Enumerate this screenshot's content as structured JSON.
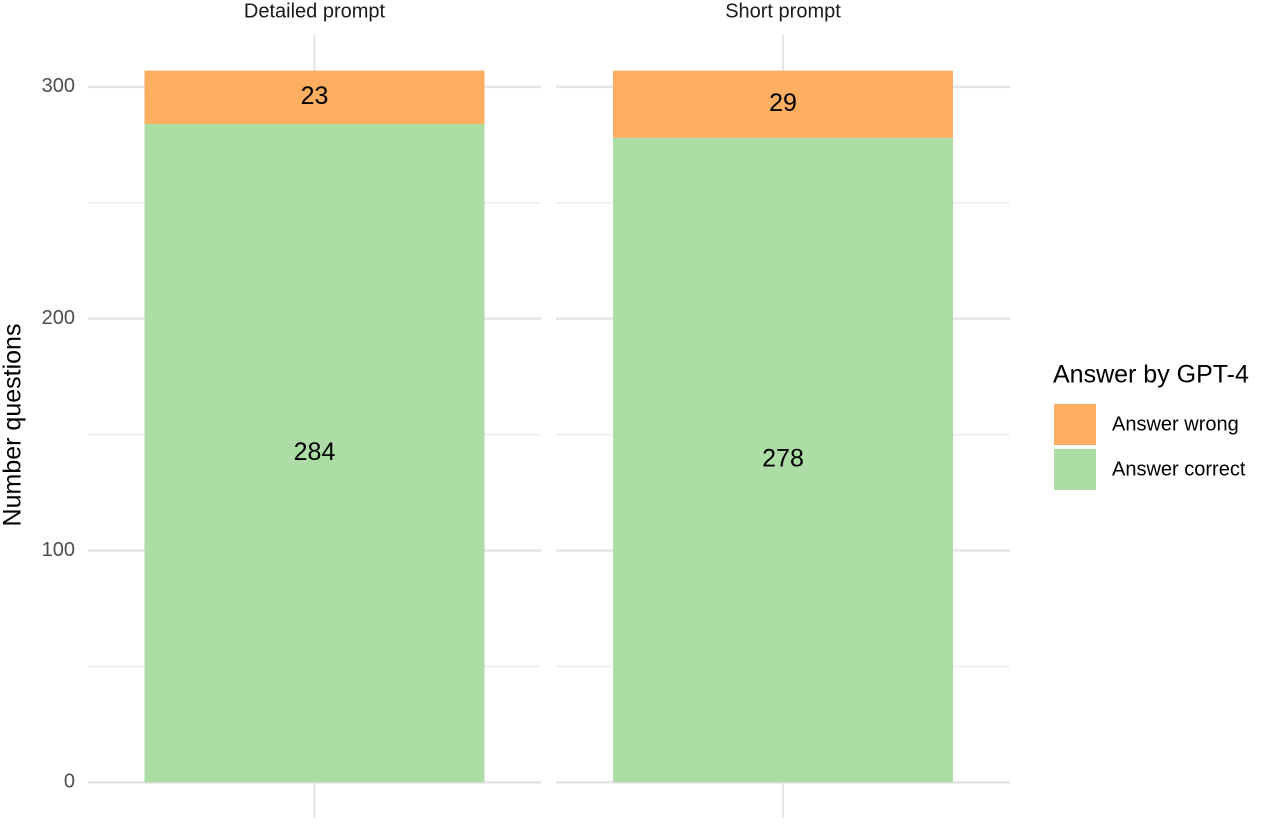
{
  "chart_data": {
    "type": "stacked-bar",
    "y_label": "Number questions",
    "legend_title": "Answer by GPT-4",
    "categories": [
      "Detailed prompt",
      "Short prompt"
    ],
    "series": [
      {
        "name": "Answer correct",
        "color": "#abdda4",
        "values": [
          284,
          278
        ]
      },
      {
        "name": "Answer wrong",
        "color": "#fdae61",
        "values": [
          23,
          29
        ]
      }
    ],
    "ylim": [
      -15.35,
      322.35
    ],
    "yticks": [
      0,
      100,
      200,
      300
    ],
    "minor_yticks": [
      50,
      150,
      250
    ],
    "grid": true,
    "legend": "right"
  }
}
